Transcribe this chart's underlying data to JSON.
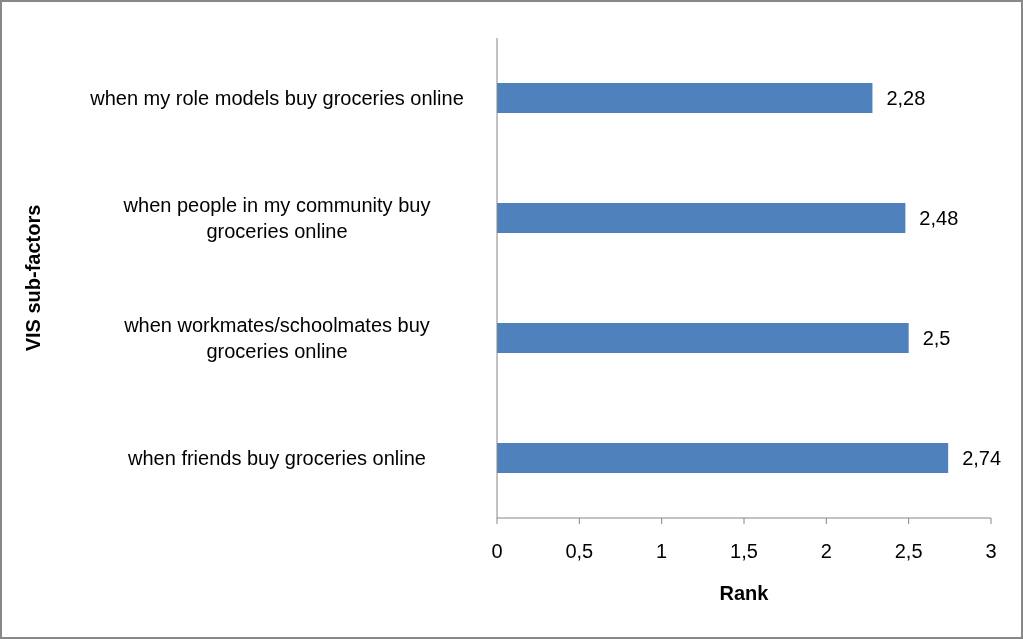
{
  "chart_data": {
    "type": "bar",
    "orientation": "horizontal",
    "xlabel": "Rank",
    "ylabel": "VIS sub-factors",
    "categories": [
      "when my role models buy groceries online",
      "when people in my community buy groceries online",
      "when workmates/schoolmates buy groceries online",
      "when friends buy groceries online"
    ],
    "values": [
      2.28,
      2.48,
      2.5,
      2.74
    ],
    "color": "#4f81bd",
    "value_labels": [
      "2,28",
      "2,48",
      "2,5",
      "2,74"
    ],
    "xlim": [
      0,
      3
    ],
    "xticks": [
      0,
      {
        "value": 0.5,
        "label": "0,5"
      },
      1,
      {
        "value": 1.5,
        "label": "1,5"
      },
      2,
      {
        "value": 2.5,
        "label": "2,5"
      },
      3
    ],
    "grid": false
  }
}
